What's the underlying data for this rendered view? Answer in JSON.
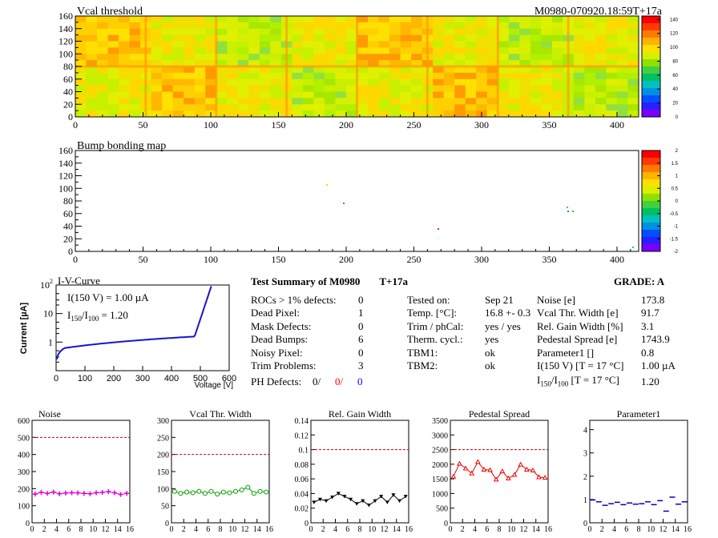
{
  "header": {
    "vcal_title": "Vcal threshold",
    "module_id": "M0980-070920.18:59T+17a",
    "bump_title": "Bump bonding map"
  },
  "maps": {
    "x_ticks": [
      "0",
      "50",
      "100",
      "150",
      "200",
      "250",
      "300",
      "350",
      "400"
    ],
    "y_ticks": [
      "0",
      "20",
      "40",
      "60",
      "80",
      "100",
      "120",
      "140",
      "160"
    ],
    "vcal_palette_ticks": [
      "0",
      "20",
      "40",
      "60",
      "80",
      "100",
      "120",
      "140"
    ],
    "bump_palette_ticks": [
      "-2",
      "-1.5",
      "-1",
      "-0.5",
      "0",
      "0.5",
      "1",
      "1.5",
      "2"
    ]
  },
  "iv": {
    "title": "I-V-Curve",
    "ylabel": "Current [µA]",
    "xlabel": "Voltage [V]",
    "line1_prefix": "I(150 V) = 1.00 ",
    "line1_unit": "µA",
    "ratio_I": "I",
    "ratio_sub1": "150",
    "ratio_slash": "/I",
    "ratio_sub2": "100",
    "ratio_value": " =  1.20",
    "x_ticks": [
      "0",
      "100",
      "200",
      "300",
      "400",
      "500",
      "600"
    ],
    "y_ticks": [
      {
        "base": "1",
        "exp": ""
      },
      {
        "base": "10",
        "exp": ""
      },
      {
        "base": "10",
        "exp": "2"
      }
    ],
    "color": "#1515d0"
  },
  "summary": {
    "title": "Test Summary of M0980",
    "temp_tag": "T+17a",
    "grade": "GRADE:  A",
    "left": [
      {
        "label": "ROCs > 1% defects:",
        "value": "0"
      },
      {
        "label": "Dead Pixel:",
        "value": "1"
      },
      {
        "label": "Mask Defects:",
        "value": "0"
      },
      {
        "label": "Dead Bumps:",
        "value": "6"
      },
      {
        "label": "Noisy Pixel:",
        "value": "0"
      },
      {
        "label": "Trim Problems:",
        "value": "3"
      }
    ],
    "ph_label": "PH Defects:",
    "ph_vals": [
      {
        "v": "0/",
        "color": "#000000"
      },
      {
        "v": "0/",
        "color": "#ff0000"
      },
      {
        "v": "0",
        "color": "#0000ff"
      }
    ],
    "middle": [
      {
        "label": "Tested on:",
        "value": "Sep 21"
      },
      {
        "label": "Temp. [°C]:",
        "value": "16.8 +- 0.3"
      },
      {
        "label": "Trim / phCal:",
        "value": "yes / yes"
      },
      {
        "label": "Therm. cycl.:",
        "value": "yes"
      },
      {
        "label": "TBM1:",
        "value": "ok"
      },
      {
        "label": "TBM2:",
        "value": "ok"
      }
    ],
    "right": [
      {
        "label": "Noise [e]",
        "value": "173.8"
      },
      {
        "label": "Vcal Thr. Width [e]",
        "value": "91.7"
      },
      {
        "label": "Rel. Gain Width [%]",
        "value": "3.1"
      },
      {
        "label": "Pedestal Spread [e]",
        "value": "1743.9"
      },
      {
        "label": "Parameter1 []",
        "value": "0.8"
      },
      {
        "label": "I(150 V) [T = 17 °C]",
        "value": "1.00 µA"
      }
    ],
    "ratio_label_I": "I",
    "ratio_label_sub1": "150",
    "ratio_label_mid": "/I",
    "ratio_label_sub2": "100",
    "ratio_label_tail": "  [T = 17 °C]",
    "ratio_value": "1.20"
  },
  "chart_data": [
    {
      "type": "line",
      "title": "Noise",
      "x": [
        0,
        1,
        2,
        3,
        4,
        5,
        6,
        7,
        8,
        9,
        10,
        11,
        12,
        13,
        14,
        15
      ],
      "values": [
        168,
        178,
        172,
        180,
        170,
        174,
        176,
        175,
        172,
        170,
        176,
        178,
        182,
        176,
        166,
        172
      ],
      "ylim": [
        0,
        600
      ],
      "yticks": [
        "0",
        "100",
        "200",
        "300",
        "400",
        "500",
        "600"
      ],
      "limit": 500,
      "color": "#dd00dd",
      "marker": "plus"
    },
    {
      "type": "line",
      "title": "Vcal Thr. Width",
      "x": [
        0,
        1,
        2,
        3,
        4,
        5,
        6,
        7,
        8,
        9,
        10,
        11,
        12,
        13,
        14,
        15
      ],
      "values": [
        92,
        86,
        90,
        88,
        92,
        86,
        92,
        84,
        90,
        88,
        92,
        96,
        104,
        86,
        92,
        90
      ],
      "ylim": [
        0,
        300
      ],
      "yticks": [
        "0",
        "50",
        "100",
        "150",
        "200",
        "250",
        "300"
      ],
      "limit": 200,
      "color": "#00a000",
      "marker": "circle"
    },
    {
      "type": "line",
      "title": "Rel. Gain Width",
      "x": [
        0,
        1,
        2,
        3,
        4,
        5,
        6,
        7,
        8,
        9,
        10,
        11,
        12,
        13,
        14,
        15
      ],
      "values": [
        0.028,
        0.032,
        0.03,
        0.035,
        0.04,
        0.036,
        0.032,
        0.026,
        0.03,
        0.024,
        0.03,
        0.036,
        0.028,
        0.038,
        0.03,
        0.036
      ],
      "ylim": [
        0,
        0.14
      ],
      "yticks": [
        "0",
        "0.02",
        "0.04",
        "0.06",
        "0.08",
        "0.1",
        "0.12",
        "0.14"
      ],
      "limit": 0.1,
      "color": "#000000",
      "marker": "triangle-down"
    },
    {
      "type": "line",
      "title": "Pedestal Spread",
      "x": [
        0,
        1,
        2,
        3,
        4,
        5,
        6,
        7,
        8,
        9,
        10,
        11,
        12,
        13,
        14,
        15
      ],
      "values": [
        1580,
        2020,
        1860,
        1690,
        2080,
        1820,
        1800,
        1480,
        1760,
        1520,
        1640,
        1990,
        1820,
        1790,
        1560,
        1540
      ],
      "ylim": [
        0,
        3500
      ],
      "yticks": [
        "0",
        "500",
        "1000",
        "1500",
        "2000",
        "2500",
        "3000",
        "3500"
      ],
      "limit": 2500,
      "color": "#ee0000",
      "marker": "triangle-up"
    },
    {
      "type": "scatter",
      "title": "Parameter1",
      "x": [
        0,
        1,
        2,
        3,
        4,
        5,
        6,
        7,
        8,
        9,
        10,
        11,
        12,
        13,
        14,
        15
      ],
      "values": [
        0.98,
        0.9,
        0.75,
        0.82,
        0.88,
        0.78,
        0.85,
        0.8,
        0.82,
        0.9,
        0.78,
        0.95,
        0.5,
        1.1,
        0.8,
        0.9
      ],
      "ylim": [
        0,
        4.4
      ],
      "yticks": [
        "0",
        "1",
        "2",
        "3",
        "4"
      ],
      "limit": null,
      "color": "#0000cc",
      "marker": "dash"
    }
  ]
}
